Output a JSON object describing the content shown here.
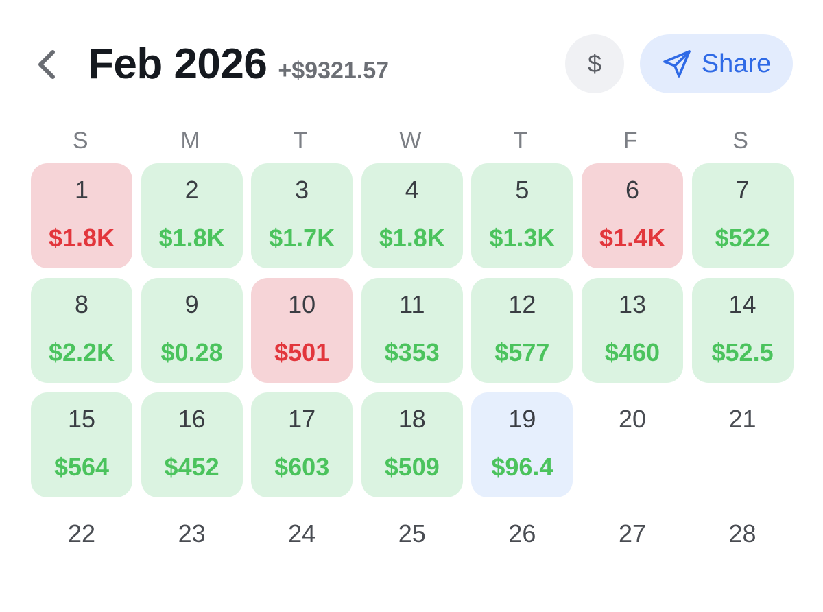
{
  "header": {
    "title": "Feb 2026",
    "total": "+$9321.57",
    "currency_label": "$",
    "share_label": "Share"
  },
  "colors": {
    "profit_bg": "#dbf3e1",
    "profit_text": "#4bc35d",
    "loss_bg": "#f6d4d7",
    "loss_text": "#e2363c",
    "today_bg": "#e6effd",
    "accent": "#2f6ae6"
  },
  "weekdays": [
    "S",
    "M",
    "T",
    "W",
    "T",
    "F",
    "S"
  ],
  "days": [
    {
      "day": "1",
      "amount": "$1.8K",
      "status": "loss"
    },
    {
      "day": "2",
      "amount": "$1.8K",
      "status": "profit"
    },
    {
      "day": "3",
      "amount": "$1.7K",
      "status": "profit"
    },
    {
      "day": "4",
      "amount": "$1.8K",
      "status": "profit"
    },
    {
      "day": "5",
      "amount": "$1.3K",
      "status": "profit"
    },
    {
      "day": "6",
      "amount": "$1.4K",
      "status": "loss"
    },
    {
      "day": "7",
      "amount": "$522",
      "status": "profit"
    },
    {
      "day": "8",
      "amount": "$2.2K",
      "status": "profit"
    },
    {
      "day": "9",
      "amount": "$0.28",
      "status": "profit"
    },
    {
      "day": "10",
      "amount": "$501",
      "status": "loss"
    },
    {
      "day": "11",
      "amount": "$353",
      "status": "profit"
    },
    {
      "day": "12",
      "amount": "$577",
      "status": "profit"
    },
    {
      "day": "13",
      "amount": "$460",
      "status": "profit"
    },
    {
      "day": "14",
      "amount": "$52.5",
      "status": "profit"
    },
    {
      "day": "15",
      "amount": "$564",
      "status": "profit"
    },
    {
      "day": "16",
      "amount": "$452",
      "status": "profit"
    },
    {
      "day": "17",
      "amount": "$603",
      "status": "profit"
    },
    {
      "day": "18",
      "amount": "$509",
      "status": "profit"
    },
    {
      "day": "19",
      "amount": "$96.4",
      "status": "today"
    },
    {
      "day": "20",
      "amount": "",
      "status": "empty"
    },
    {
      "day": "21",
      "amount": "",
      "status": "empty"
    },
    {
      "day": "22",
      "amount": "",
      "status": "empty"
    },
    {
      "day": "23",
      "amount": "",
      "status": "empty"
    },
    {
      "day": "24",
      "amount": "",
      "status": "empty"
    },
    {
      "day": "25",
      "amount": "",
      "status": "empty"
    },
    {
      "day": "26",
      "amount": "",
      "status": "empty"
    },
    {
      "day": "27",
      "amount": "",
      "status": "empty"
    },
    {
      "day": "28",
      "amount": "",
      "status": "empty"
    }
  ]
}
